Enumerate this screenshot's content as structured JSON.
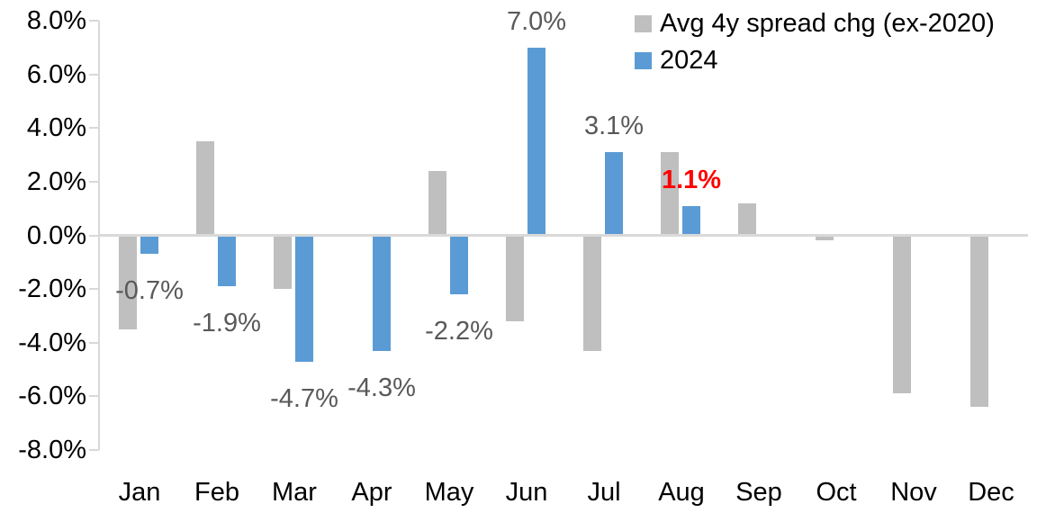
{
  "chart_data": {
    "type": "bar",
    "title": "",
    "xlabel": "",
    "ylabel": "",
    "categories": [
      "Jan",
      "Feb",
      "Mar",
      "Apr",
      "May",
      "Jun",
      "Jul",
      "Aug",
      "Sep",
      "Oct",
      "Nov",
      "Dec"
    ],
    "series": [
      {
        "name": "Avg 4y spread chg (ex-2020)",
        "color": "#bfbfbf",
        "values": [
          -3.5,
          3.5,
          -2.0,
          null,
          2.4,
          -3.2,
          -4.3,
          3.1,
          1.2,
          -0.2,
          -5.9,
          -6.4
        ]
      },
      {
        "name": "2024",
        "color": "#5b9bd5",
        "values": [
          -0.7,
          -1.9,
          -4.7,
          -4.3,
          -2.2,
          7.0,
          3.1,
          1.1,
          null,
          null,
          null,
          null
        ],
        "labels": [
          {
            "text": "-0.7%"
          },
          {
            "text": "-1.9%"
          },
          {
            "text": "-4.7%"
          },
          {
            "text": "-4.3%"
          },
          {
            "text": "-2.2%"
          },
          {
            "text": "7.0%"
          },
          {
            "text": "3.1%"
          },
          {
            "text": "1.1%",
            "color": "#ff0000",
            "bold": true
          },
          null,
          null,
          null,
          null
        ]
      }
    ],
    "ylim": [
      -8,
      8
    ],
    "yticks": {
      "values": [
        8,
        6,
        4,
        2,
        0,
        -2,
        -4,
        -6,
        -8
      ],
      "labels": [
        "8.0%",
        "6.0%",
        "4.0%",
        "2.0%",
        "0.0%",
        "-2.0%",
        "-4.0%",
        "-6.0%",
        "-8.0%"
      ]
    },
    "grid": false,
    "legend_position": "top-right",
    "axis_color": "#d9d9d9",
    "axis_text_color": "#000000",
    "data_label_color": "#595959",
    "highlight_color": "#ff0000"
  }
}
